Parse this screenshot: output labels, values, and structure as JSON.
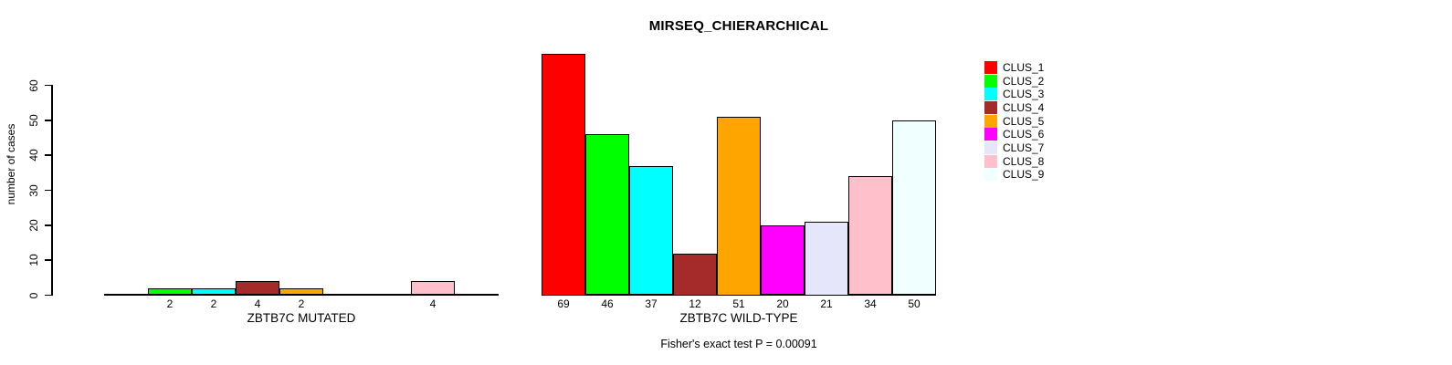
{
  "chart_data": {
    "type": "bar",
    "title": "MIRSEQ_CHIERARCHICAL",
    "ylabel": "number of cases",
    "ylim": [
      0,
      60
    ],
    "yticks": [
      0,
      10,
      20,
      30,
      40,
      50,
      60
    ],
    "grid": false,
    "legend_position": "right",
    "categories": [
      "CLUS_1",
      "CLUS_2",
      "CLUS_3",
      "CLUS_4",
      "CLUS_5",
      "CLUS_6",
      "CLUS_7",
      "CLUS_8",
      "CLUS_9"
    ],
    "colors": [
      "#FF0000",
      "#00FF00",
      "#00FFFF",
      "#A52A2A",
      "#FFA500",
      "#FF00FF",
      "#E6E6FA",
      "#FFC0CB",
      "#F0FFFF"
    ],
    "panels": [
      {
        "xlabel": "ZBTB7C MUTATED",
        "values": [
          0,
          2,
          2,
          4,
          2,
          0,
          0,
          4,
          0
        ]
      },
      {
        "xlabel": "ZBTB7C WILD-TYPE",
        "values": [
          69,
          46,
          37,
          12,
          51,
          20,
          21,
          34,
          50
        ]
      }
    ],
    "annotation": "Fisher's exact test P = 0.00091"
  }
}
